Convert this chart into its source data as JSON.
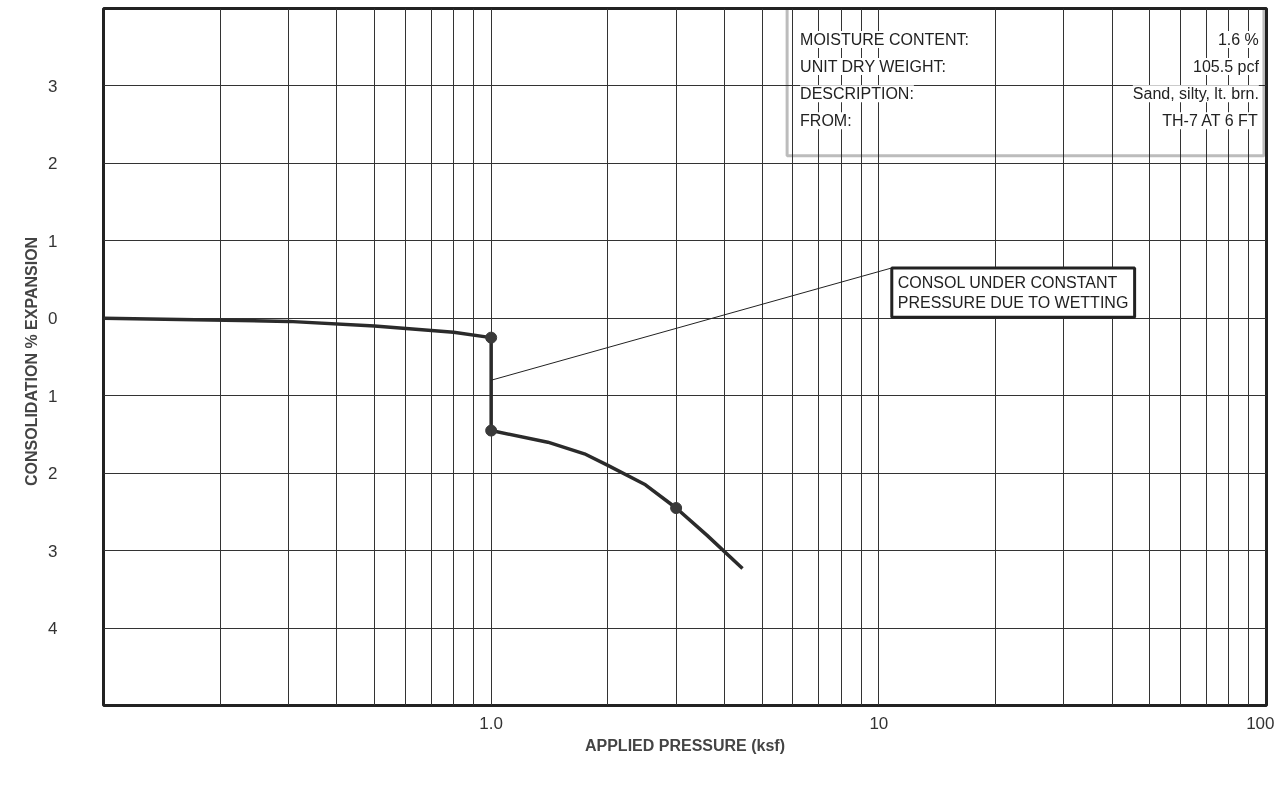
{
  "chart_data": {
    "type": "line",
    "xlabel": "APPLIED PRESSURE (ksf)",
    "ylabel": "CONSOLIDATION  %  EXPANSION",
    "log": "x",
    "grid": true,
    "xlim": [
      0.1,
      100
    ],
    "xticks": [
      {
        "value": 1,
        "label": "1.0"
      },
      10,
      100
    ],
    "ylim": [
      -5,
      4
    ],
    "yticks": [
      {
        "value": 3,
        "label": "3"
      },
      {
        "value": 2,
        "label": "2"
      },
      {
        "value": 1,
        "label": "1"
      },
      0,
      {
        "value": -1,
        "label": "1"
      },
      {
        "value": -2,
        "label": "2"
      },
      {
        "value": -3,
        "label": "3"
      },
      {
        "value": -4,
        "label": "4"
      }
    ],
    "series": [
      {
        "marker": "none",
        "color": "#2b2b2b",
        "x": [
          0.1,
          0.3,
          0.5,
          0.8,
          1.0,
          1.0,
          1.4,
          1.74,
          2.0,
          2.5,
          3.0,
          3.6,
          4.45
        ],
        "values": [
          0,
          -0.04,
          -0.1,
          -0.18,
          -0.25,
          -1.45,
          -1.6,
          -1.75,
          -1.9,
          -2.15,
          -2.45,
          -2.8,
          -3.23
        ]
      },
      {
        "type": "scatter",
        "marker": "circle",
        "color": "#3a3a3a",
        "x": [
          1.0,
          1.0,
          3.0
        ],
        "values": [
          -0.25,
          -1.45,
          -2.45
        ]
      }
    ],
    "annotations": [
      "MOISTURE CONTENT:",
      "1.6 %",
      "UNIT DRY WEIGHT:",
      "105.5 pcf",
      "DESCRIPTION:",
      "Sand, silty, lt. brn.",
      "FROM:",
      "TH-7 AT 6 FT",
      {
        "text": "CONSOL UNDER CONSTANT\nPRESSURE DUE TO WETTING",
        "x": 1.0,
        "y": -0.8
      }
    ]
  }
}
